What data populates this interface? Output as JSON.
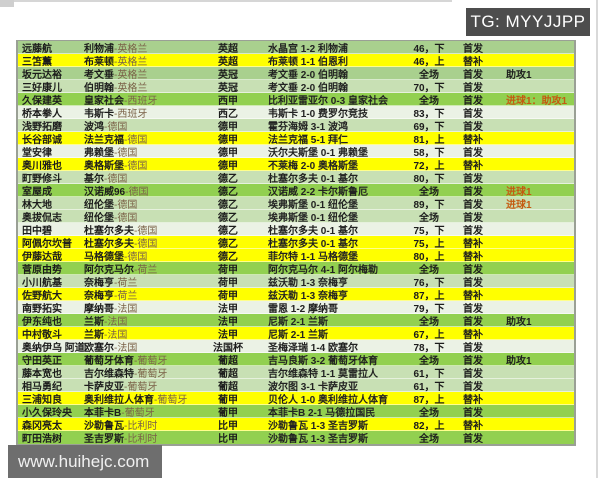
{
  "badge": {
    "text": "TG: MYYJJPP",
    "bg": "#4d4d4d",
    "color": "#ffffff"
  },
  "watermark": {
    "text": "www.huihejc.com",
    "bg": "#6e6e6e",
    "color": "#f0f0f0"
  },
  "colors": {
    "row_yellow": "#ffff00",
    "row_green_dark": "#92d050",
    "row_green": "#a9d08e",
    "row_green_light": "#c8e0b4",
    "row_pale": "#ebf2e5",
    "goal_note_text": "#c55a11",
    "country_text": "#7b6248",
    "badge_bg": "#4d4d4d",
    "watermark_bg": "#6e6e6e"
  },
  "table": {
    "rows": [
      {
        "name": "远藤航",
        "club": "利物浦",
        "country": "英格兰",
        "league": "英超",
        "score": "水晶宫 1-2 利物浦",
        "minutes": "46，下",
        "status": "首发",
        "note": "",
        "goal": false,
        "bg": "g2"
      },
      {
        "name": "三笘薫",
        "club": "布莱顿",
        "country": "英格兰",
        "league": "英超",
        "score": "布莱顿 1-1 伯恩利",
        "minutes": "46，上",
        "status": "替补",
        "note": "",
        "goal": false,
        "bg": "y"
      },
      {
        "name": "坂元达裕",
        "club": "考文垂",
        "country": "英格兰",
        "league": "英冠",
        "score": "考文垂 2-0 伯明翰",
        "minutes": "全场",
        "status": "首发",
        "note": "助攻1",
        "goal": false,
        "bg": "g2"
      },
      {
        "name": "三好康儿",
        "club": "伯明翰",
        "country": "英格兰",
        "league": "英冠",
        "score": "考文垂 2-0 伯明翰",
        "minutes": "70，下",
        "status": "首发",
        "note": "",
        "goal": false,
        "bg": "g3"
      },
      {
        "name": "久保建英",
        "club": "皇家社会",
        "country": "西班牙",
        "league": "西甲",
        "score": "比利亚雷亚尔 0-3 皇家社会",
        "minutes": "全场",
        "status": "首发",
        "note": "进球1：助攻1",
        "goal": true,
        "bg": "g1"
      },
      {
        "name": "桥本拳人",
        "club": "韦斯卡",
        "country": "西班牙",
        "league": "西乙",
        "score": "韦斯卡 1-0 费罗尔竞技",
        "minutes": "83，下",
        "status": "首发",
        "note": "",
        "goal": false,
        "bg": "w"
      },
      {
        "name": "浅野拓磨",
        "club": "波鸿",
        "country": "德国",
        "league": "德甲",
        "score": "霍芬海姆 3-1 波鸿",
        "minutes": "69，下",
        "status": "首发",
        "note": "",
        "goal": false,
        "bg": "g3"
      },
      {
        "name": "长谷部诚",
        "club": "法兰克福",
        "country": "德国",
        "league": "德甲",
        "score": "法兰克福 5-1 拜仁",
        "minutes": "81，上",
        "status": "替补",
        "note": "",
        "goal": false,
        "bg": "y"
      },
      {
        "name": "堂安律",
        "club": "弗赖堡",
        "country": "德国",
        "league": "德甲",
        "score": "沃尔夫斯堡 0-1 弗赖堡",
        "minutes": "58，下",
        "status": "首发",
        "note": "",
        "goal": false,
        "bg": "w"
      },
      {
        "name": "奥川雅也",
        "club": "奥格斯堡",
        "country": "德国",
        "league": "德甲",
        "score": "不莱梅 2-0 奥格斯堡",
        "minutes": "72，上",
        "status": "替补",
        "note": "",
        "goal": false,
        "bg": "y"
      },
      {
        "name": "町野修斗",
        "club": "基尔",
        "country": "德国",
        "league": "德乙",
        "score": "杜塞尔多夫 0-1 基尔",
        "minutes": "80，下",
        "status": "首发",
        "note": "",
        "goal": false,
        "bg": "g3"
      },
      {
        "name": "室屋成",
        "club": "汉诺威96",
        "country": "德国",
        "league": "德乙",
        "score": "汉诺威 2-2 卡尔斯鲁厄",
        "minutes": "全场",
        "status": "首发",
        "note": "进球1",
        "goal": true,
        "bg": "g1"
      },
      {
        "name": "林大地",
        "club": "纽伦堡",
        "country": "德国",
        "league": "德乙",
        "score": "埃弗斯堡 0-1 纽伦堡",
        "minutes": "89，下",
        "status": "首发",
        "note": "进球1",
        "goal": true,
        "bg": "g3"
      },
      {
        "name": "奥拔侃志",
        "club": "纽伦堡",
        "country": "德国",
        "league": "德乙",
        "score": "埃弗斯堡 0-1 纽伦堡",
        "minutes": "全场",
        "status": "首发",
        "note": "",
        "goal": false,
        "bg": "g3"
      },
      {
        "name": "田中碧",
        "club": "杜塞尔多夫",
        "country": "德国",
        "league": "德乙",
        "score": "杜塞尔多夫 0-1 基尔",
        "minutes": "75，下",
        "status": "首发",
        "note": "",
        "goal": false,
        "bg": "w"
      },
      {
        "name": "阿佩尔坎普",
        "club": "杜塞尔多夫",
        "country": "德国",
        "league": "德乙",
        "score": "杜塞尔多夫 0-1 基尔",
        "minutes": "75，上",
        "status": "替补",
        "note": "",
        "goal": false,
        "bg": "y"
      },
      {
        "name": "伊藤达哉",
        "club": "马格德堡",
        "country": "德国",
        "league": "德乙",
        "score": "菲尔特 1-1 马格德堡",
        "minutes": "80，上",
        "status": "替补",
        "note": "",
        "goal": false,
        "bg": "y"
      },
      {
        "name": "菅原由势",
        "club": "阿尔克马尔",
        "country": "荷兰",
        "league": "荷甲",
        "score": "阿尔克马尔 4-1 阿尔梅勒",
        "minutes": "全场",
        "status": "首发",
        "note": "",
        "goal": false,
        "bg": "g1"
      },
      {
        "name": "小川航基",
        "club": "奈梅亨",
        "country": "荷兰",
        "league": "荷甲",
        "score": "兹沃勒 1-3 奈梅亨",
        "minutes": "76，下",
        "status": "首发",
        "note": "",
        "goal": false,
        "bg": "g3"
      },
      {
        "name": "佐野航大",
        "club": "奈梅亨",
        "country": "荷兰",
        "league": "荷甲",
        "score": "兹沃勒 1-3 奈梅亨",
        "minutes": "87，上",
        "status": "替补",
        "note": "",
        "goal": false,
        "bg": "y"
      },
      {
        "name": "南野拓实",
        "club": "摩纳哥",
        "country": "法国",
        "league": "法甲",
        "score": "雷恩 1-2 摩纳哥",
        "minutes": "79，下",
        "status": "首发",
        "note": "",
        "goal": false,
        "bg": "w"
      },
      {
        "name": "伊东纯也",
        "club": "兰斯",
        "country": "法国",
        "league": "法甲",
        "score": "尼斯 2-1 兰斯",
        "minutes": "全场",
        "status": "首发",
        "note": "助攻1",
        "goal": false,
        "bg": "g1"
      },
      {
        "name": "中村敬斗",
        "club": "兰斯",
        "country": "法国",
        "league": "法甲",
        "score": "尼斯 2-1 兰斯",
        "minutes": "67，上",
        "status": "替补",
        "note": "",
        "goal": false,
        "bg": "y"
      },
      {
        "name": "奥纳伊乌 阿道",
        "club": "欧塞尔",
        "country": "法国",
        "league": "法国杯",
        "score": "圣梅泽瑞 1-4 欧塞尔",
        "minutes": "78，下",
        "status": "首发",
        "note": "",
        "goal": false,
        "bg": "w"
      },
      {
        "name": "守田英正",
        "club": "葡萄牙体育",
        "country": "葡萄牙",
        "league": "葡超",
        "score": "吉马良斯 3-2 葡萄牙体育",
        "minutes": "全场",
        "status": "首发",
        "note": "助攻1",
        "goal": false,
        "bg": "g1"
      },
      {
        "name": "藤本宽也",
        "club": "吉尔维森特",
        "country": "葡萄牙",
        "league": "葡超",
        "score": "吉尔维森特 1-1 莫雷拉人",
        "minutes": "61，下",
        "status": "首发",
        "note": "",
        "goal": false,
        "bg": "g3"
      },
      {
        "name": "相马勇纪",
        "club": "卡萨皮亚",
        "country": "葡萄牙",
        "league": "葡超",
        "score": "波尔图 3-1 卡萨皮亚",
        "minutes": "61，下",
        "status": "首发",
        "note": "",
        "goal": false,
        "bg": "g3"
      },
      {
        "name": "三浦知良",
        "club": "奥利维拉人体育",
        "country": "葡萄牙",
        "league": "葡甲",
        "score": "贝伦人 1-0 奥利维拉人体育",
        "minutes": "87，上",
        "status": "替补",
        "note": "",
        "goal": false,
        "bg": "y"
      },
      {
        "name": "小久保玲央",
        "club": "本菲卡B",
        "country": "葡萄牙",
        "league": "葡甲",
        "score": "本菲卡B 2-1 马德拉国民",
        "minutes": "全场",
        "status": "首发",
        "note": "",
        "goal": false,
        "bg": "g1"
      },
      {
        "name": "森冈亮太",
        "club": "沙勒鲁瓦",
        "country": "比利时",
        "league": "比甲",
        "score": "沙勒鲁瓦 1-3 圣吉罗斯",
        "minutes": "82，上",
        "status": "替补",
        "note": "",
        "goal": false,
        "bg": "y"
      },
      {
        "name": "町田浩树",
        "club": "圣吉罗斯",
        "country": "比利时",
        "league": "比甲",
        "score": "沙勒鲁瓦 1-3 圣吉罗斯",
        "minutes": "全场",
        "status": "首发",
        "note": "",
        "goal": false,
        "bg": "g1"
      }
    ]
  }
}
